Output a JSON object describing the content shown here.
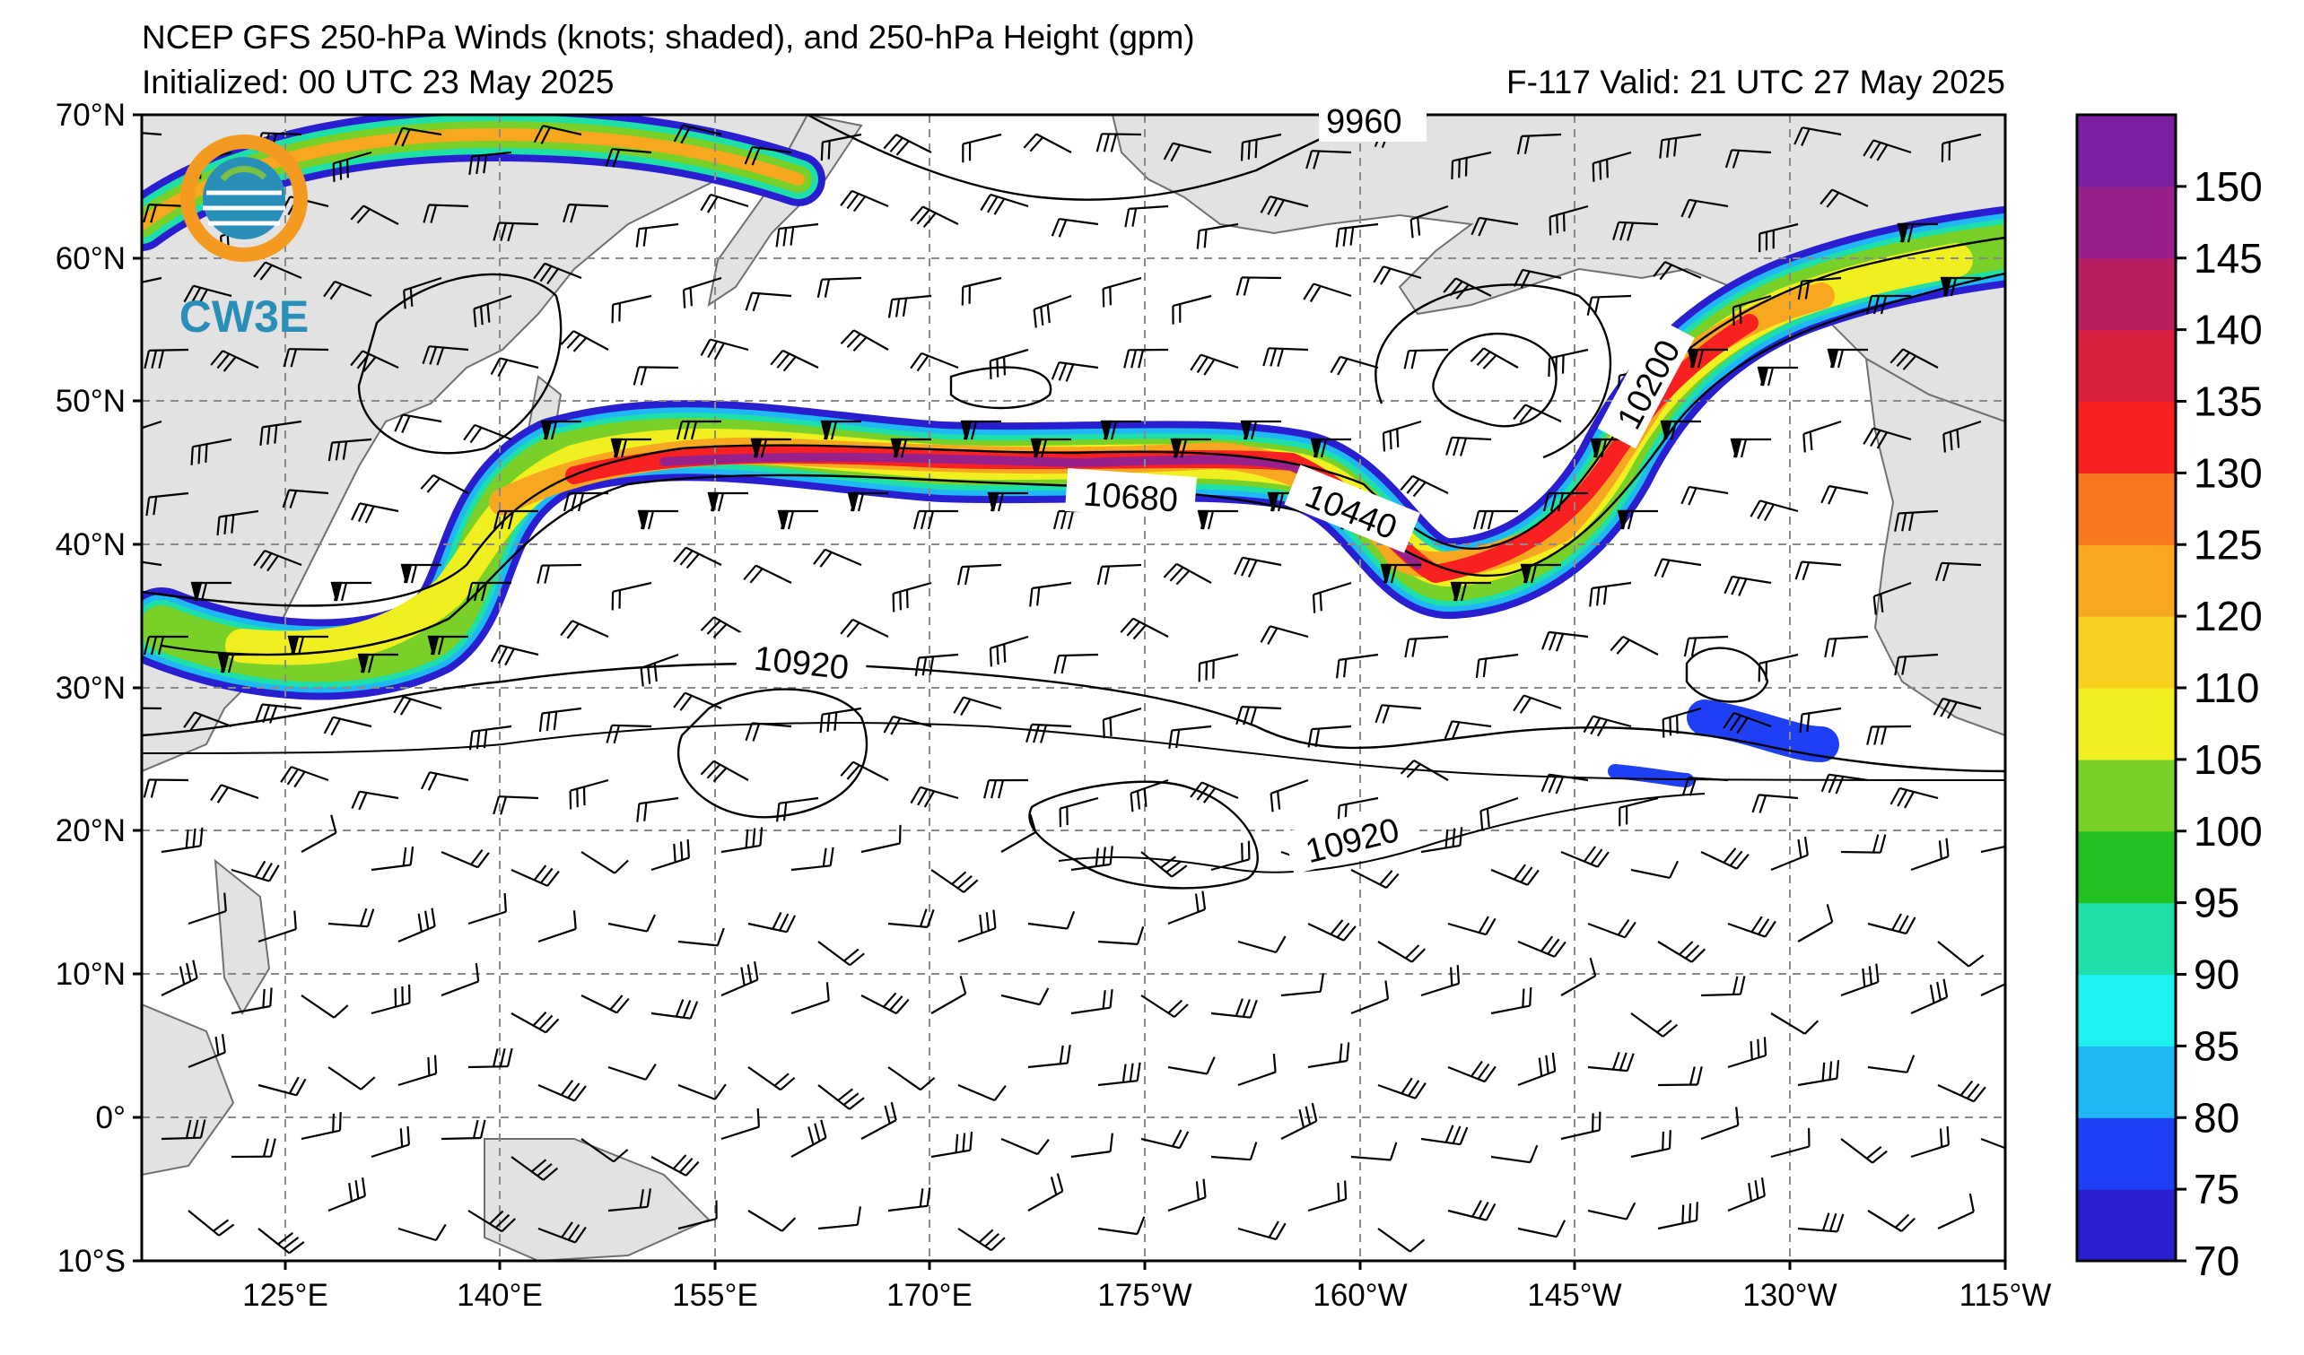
{
  "title": {
    "line1": "NCEP GFS 250-hPa Winds (knots; shaded), and 250-hPa Height (gpm)",
    "init": "Initialized: 00 UTC 23 May 2025",
    "valid": "F-117  Valid: 21 UTC 27 May 2025"
  },
  "logo": {
    "text": "CW3E"
  },
  "axes": {
    "lat_labels": [
      "70°N",
      "60°N",
      "50°N",
      "40°N",
      "30°N",
      "20°N",
      "10°N",
      "0°",
      "10°S"
    ],
    "lon_labels": [
      "125°E",
      "140°E",
      "155°E",
      "170°E",
      "175°W",
      "160°W",
      "145°W",
      "130°W",
      "115°W"
    ]
  },
  "contour_labels": [
    {
      "text": "9960"
    },
    {
      "text": "10200"
    },
    {
      "text": "10440"
    },
    {
      "text": "10680"
    },
    {
      "text": "10920"
    },
    {
      "text": "10920"
    }
  ],
  "colorbar": {
    "ticks": [
      "70",
      "75",
      "80",
      "85",
      "90",
      "95",
      "100",
      "105",
      "110",
      "120",
      "125",
      "130",
      "135",
      "140",
      "145",
      "150"
    ],
    "colors": [
      "#2a1fd0",
      "#1f3ff5",
      "#1fb8f5",
      "#1ff0f0",
      "#1fdfa8",
      "#22c022",
      "#78d028",
      "#f0f020",
      "#f8d020",
      "#f8a820",
      "#f87820",
      "#f82020",
      "#d81f40",
      "#b81f60",
      "#98208a",
      "#7a20a0"
    ]
  }
}
